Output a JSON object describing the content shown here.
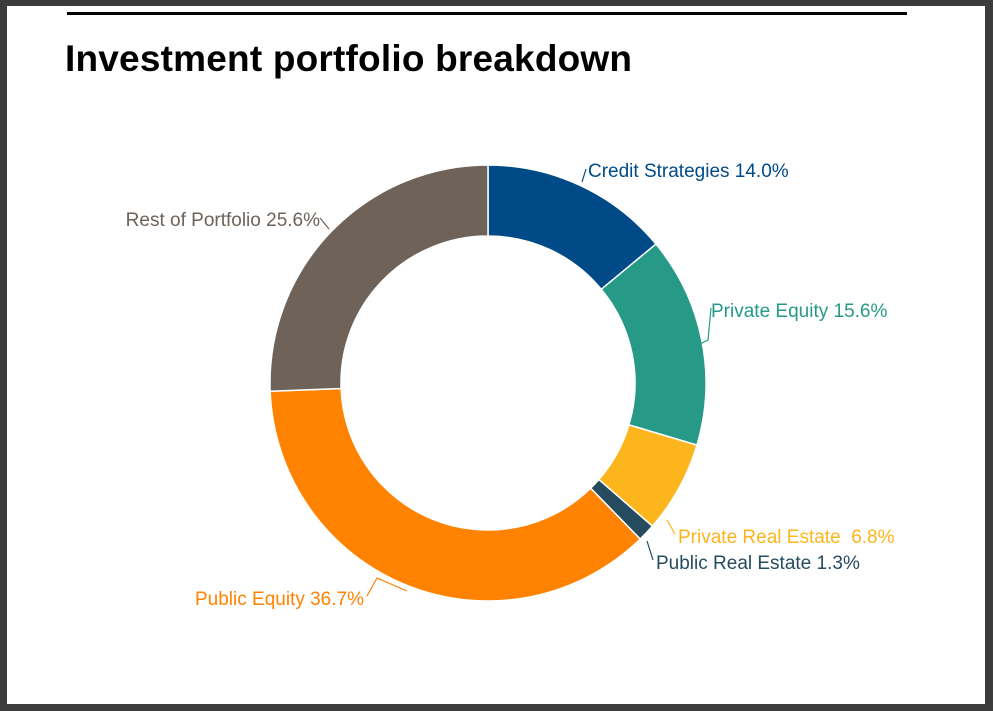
{
  "chart_data": {
    "type": "pie",
    "variant": "donut",
    "title": "Investment portfolio breakdown",
    "slices": [
      {
        "label": "Credit Strategies",
        "value_text": "14.0%",
        "value": 14.0,
        "color": "#004a87",
        "display": "Credit Strategies 14.0%"
      },
      {
        "label": "Private Equity",
        "value_text": "15.6%",
        "value": 15.6,
        "color": "#269a87",
        "display": "Private Equity 15.6%"
      },
      {
        "label": "Private Real Estate",
        "value_text": "6.8%",
        "value": 6.8,
        "color": "#fdb51d",
        "display": "Private Real Estate  6.8%"
      },
      {
        "label": "Public Real Estate",
        "value_text": "1.3%",
        "value": 1.3,
        "color": "#264a5e",
        "display": "Public Real Estate 1.3%"
      },
      {
        "label": "Public Equity",
        "value_text": "36.7%",
        "value": 36.7,
        "color": "#ff8200",
        "display": "Public Equity 36.7%"
      },
      {
        "label": "Rest of Portfolio",
        "value_text": "25.6%",
        "value": 25.6,
        "color": "#6e6259",
        "display": "Rest of Portfolio 25.6%"
      }
    ],
    "legend": "none",
    "start_angle_deg": 0,
    "direction": "clockwise"
  }
}
